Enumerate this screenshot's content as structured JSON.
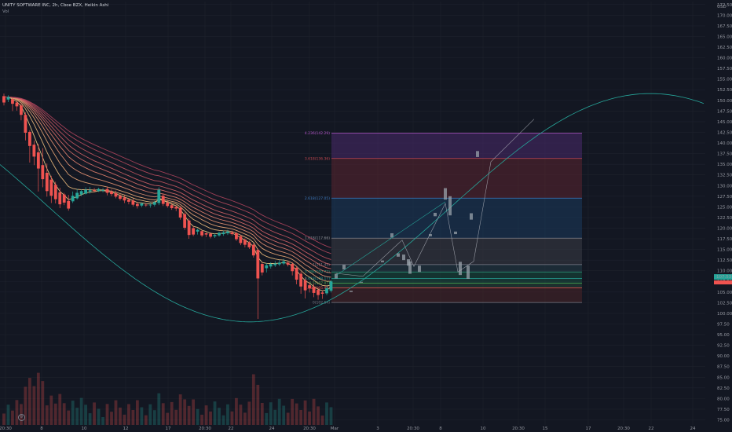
{
  "header": {
    "symbol_line": "UNITY SOFTWARE INC, 2h, Cboe BZX, Heikin Ashi",
    "volume_label": "Vol"
  },
  "price_axis": {
    "currency": "USD",
    "current_price": "107.53"
  },
  "colors": {
    "background": "#131722",
    "up": "#26a69a",
    "down": "#ef5350",
    "curve": "#26a69a"
  },
  "chart_data": {
    "type": "candlestick",
    "title": "UNITY SOFTWARE INC, 2h, Cboe BZX, Heikin Ashi",
    "y_ticks": [
      "172.50",
      "170.00",
      "167.50",
      "165.00",
      "162.50",
      "160.00",
      "157.50",
      "155.00",
      "152.50",
      "150.00",
      "147.50",
      "145.00",
      "142.50",
      "140.00",
      "137.50",
      "135.00",
      "132.50",
      "130.00",
      "127.50",
      "125.00",
      "122.50",
      "120.00",
      "117.50",
      "115.00",
      "112.50",
      "110.00",
      "107.50",
      "105.00",
      "102.50",
      "100.00",
      "97.50",
      "95.00",
      "92.50",
      "90.00",
      "87.50",
      "85.00",
      "82.50",
      "80.00",
      "77.50",
      "75.00"
    ],
    "ylim": [
      73.8,
      173.2
    ],
    "x_ticks": [
      "20:30",
      "8",
      "10",
      "12",
      "17",
      "20:30",
      "22",
      "24",
      "20:30",
      "Mar",
      "3",
      "20:30",
      "8",
      "10",
      "20:30",
      "15",
      "17",
      "20:30",
      "22",
      "24"
    ],
    "fib_levels": [
      {
        "label": "4.236(142.29)",
        "value": 142.29
      },
      {
        "label": "3.618(136.36)",
        "value": 136.36
      },
      {
        "label": "2.618(127.05)",
        "value": 127.05
      },
      {
        "label": "1.618(117.66)",
        "value": 117.66
      },
      {
        "label": "1(111.45)",
        "value": 111.45
      },
      {
        "label": "0.786(109.72)",
        "value": 109.72
      },
      {
        "label": "0.618(108.17)",
        "value": 108.17
      },
      {
        "label": "0.5(107.07)",
        "value": 107.07
      },
      {
        "label": "0.382(105.98)",
        "value": 105.98
      },
      {
        "label": "0(102.54)",
        "value": 102.54
      }
    ],
    "candles": [
      {
        "o": 151.0,
        "c": 149.5,
        "h": 151.6,
        "l": 148.8
      },
      {
        "o": 150.2,
        "c": 150.8,
        "h": 151.2,
        "l": 149.6
      },
      {
        "o": 150.3,
        "c": 149.2,
        "h": 150.6,
        "l": 147.5
      },
      {
        "o": 149.5,
        "c": 148.6,
        "h": 150.1,
        "l": 147.6
      },
      {
        "o": 148.8,
        "c": 146.6,
        "h": 149.4,
        "l": 145.3
      },
      {
        "o": 146.6,
        "c": 142.4,
        "h": 147.2,
        "l": 140.6
      },
      {
        "o": 142.6,
        "c": 139.3,
        "h": 143.0,
        "l": 135.4
      },
      {
        "o": 139.6,
        "c": 136.8,
        "h": 140.6,
        "l": 134.8
      },
      {
        "o": 137.8,
        "c": 134.0,
        "h": 139.8,
        "l": 128.6
      },
      {
        "o": 134.8,
        "c": 131.5,
        "h": 138.8,
        "l": 129.6
      },
      {
        "o": 133.0,
        "c": 128.7,
        "h": 135.2,
        "l": 127.4
      },
      {
        "o": 131.4,
        "c": 127.6,
        "h": 132.3,
        "l": 125.9
      },
      {
        "o": 130.2,
        "c": 126.8,
        "h": 130.9,
        "l": 125.8
      },
      {
        "o": 128.4,
        "c": 125.6,
        "h": 129.5,
        "l": 124.7
      },
      {
        "o": 127.9,
        "c": 126.0,
        "h": 128.3,
        "l": 125.4
      },
      {
        "o": 126.4,
        "c": 124.6,
        "h": 127.8,
        "l": 124.1
      },
      {
        "o": 126.3,
        "c": 127.6,
        "h": 128.6,
        "l": 125.9
      },
      {
        "o": 127.0,
        "c": 128.3,
        "h": 129.2,
        "l": 126.7
      },
      {
        "o": 127.9,
        "c": 128.7,
        "h": 129.1,
        "l": 127.5
      },
      {
        "o": 128.1,
        "c": 129.0,
        "h": 129.6,
        "l": 127.9
      },
      {
        "o": 128.6,
        "c": 128.9,
        "h": 129.7,
        "l": 128.1
      },
      {
        "o": 128.9,
        "c": 128.7,
        "h": 129.4,
        "l": 128.4
      },
      {
        "o": 128.7,
        "c": 129.2,
        "h": 129.5,
        "l": 128.5
      },
      {
        "o": 128.9,
        "c": 128.9,
        "h": 129.4,
        "l": 128.4
      },
      {
        "o": 129.2,
        "c": 128.3,
        "h": 129.8,
        "l": 127.7
      },
      {
        "o": 128.6,
        "c": 128.0,
        "h": 129.1,
        "l": 127.5
      },
      {
        "o": 128.2,
        "c": 127.4,
        "h": 128.8,
        "l": 127.0
      },
      {
        "o": 127.6,
        "c": 126.9,
        "h": 128.0,
        "l": 126.5
      },
      {
        "o": 127.2,
        "c": 126.5,
        "h": 127.7,
        "l": 125.9
      },
      {
        "o": 126.7,
        "c": 126.2,
        "h": 127.1,
        "l": 125.6
      },
      {
        "o": 126.5,
        "c": 125.5,
        "h": 127.0,
        "l": 125.1
      },
      {
        "o": 125.7,
        "c": 125.2,
        "h": 126.2,
        "l": 124.6
      },
      {
        "o": 125.3,
        "c": 125.8,
        "h": 126.0,
        "l": 124.9
      },
      {
        "o": 125.5,
        "c": 125.4,
        "h": 125.9,
        "l": 125.0
      },
      {
        "o": 125.4,
        "c": 125.5,
        "h": 125.9,
        "l": 124.8
      },
      {
        "o": 125.5,
        "c": 126.1,
        "h": 126.4,
        "l": 125.1
      },
      {
        "o": 125.9,
        "c": 129.0,
        "h": 129.6,
        "l": 125.4
      },
      {
        "o": 127.6,
        "c": 125.7,
        "h": 128.1,
        "l": 125.2
      },
      {
        "o": 126.0,
        "c": 125.2,
        "h": 126.5,
        "l": 124.8
      },
      {
        "o": 125.4,
        "c": 124.7,
        "h": 125.8,
        "l": 124.3
      },
      {
        "o": 125.0,
        "c": 124.6,
        "h": 125.3,
        "l": 124.0
      },
      {
        "o": 124.8,
        "c": 122.5,
        "h": 125.2,
        "l": 122.0
      },
      {
        "o": 123.3,
        "c": 120.1,
        "h": 123.7,
        "l": 119.6
      },
      {
        "o": 121.8,
        "c": 118.4,
        "h": 122.3,
        "l": 117.5
      },
      {
        "o": 120.0,
        "c": 118.5,
        "h": 120.5,
        "l": 118.1
      },
      {
        "o": 119.2,
        "c": 119.6,
        "h": 119.9,
        "l": 118.5
      },
      {
        "o": 119.3,
        "c": 118.3,
        "h": 119.6,
        "l": 117.9
      },
      {
        "o": 118.8,
        "c": 118.5,
        "h": 119.0,
        "l": 117.9
      },
      {
        "o": 118.7,
        "c": 118.0,
        "h": 119.0,
        "l": 117.6
      },
      {
        "o": 118.1,
        "c": 118.4,
        "h": 118.7,
        "l": 117.7
      },
      {
        "o": 118.3,
        "c": 118.9,
        "h": 119.2,
        "l": 118.0
      },
      {
        "o": 118.6,
        "c": 119.0,
        "h": 119.4,
        "l": 118.2
      },
      {
        "o": 118.8,
        "c": 119.2,
        "h": 119.6,
        "l": 118.4
      },
      {
        "o": 119.0,
        "c": 118.6,
        "h": 119.4,
        "l": 118.3
      },
      {
        "o": 118.8,
        "c": 117.4,
        "h": 119.1,
        "l": 117.0
      },
      {
        "o": 118.1,
        "c": 116.5,
        "h": 118.4,
        "l": 116.0
      },
      {
        "o": 117.3,
        "c": 116.1,
        "h": 117.6,
        "l": 115.5
      },
      {
        "o": 116.7,
        "c": 115.5,
        "h": 117.0,
        "l": 115.1
      },
      {
        "o": 116.1,
        "c": 113.6,
        "h": 116.4,
        "l": 113.1
      },
      {
        "o": 114.9,
        "c": 108.2,
        "h": 115.2,
        "l": 98.7
      },
      {
        "o": 111.6,
        "c": 109.6,
        "h": 112.1,
        "l": 108.9
      },
      {
        "o": 110.6,
        "c": 111.3,
        "h": 111.8,
        "l": 109.6
      },
      {
        "o": 111.0,
        "c": 111.6,
        "h": 112.0,
        "l": 110.5
      },
      {
        "o": 111.3,
        "c": 111.7,
        "h": 112.3,
        "l": 110.9
      },
      {
        "o": 111.5,
        "c": 111.9,
        "h": 112.5,
        "l": 111.1
      },
      {
        "o": 111.7,
        "c": 112.2,
        "h": 112.8,
        "l": 111.3
      },
      {
        "o": 111.9,
        "c": 111.4,
        "h": 112.3,
        "l": 111.0
      },
      {
        "o": 111.6,
        "c": 109.9,
        "h": 112.0,
        "l": 108.9
      },
      {
        "o": 110.7,
        "c": 107.9,
        "h": 111.1,
        "l": 106.8
      },
      {
        "o": 109.3,
        "c": 106.3,
        "h": 109.8,
        "l": 104.6
      },
      {
        "o": 107.8,
        "c": 105.4,
        "h": 108.4,
        "l": 103.5
      },
      {
        "o": 106.6,
        "c": 105.9,
        "h": 107.3,
        "l": 104.9
      },
      {
        "o": 106.2,
        "c": 104.8,
        "h": 106.9,
        "l": 103.8
      },
      {
        "o": 105.5,
        "c": 104.3,
        "h": 106.0,
        "l": 103.2
      },
      {
        "o": 104.9,
        "c": 104.6,
        "h": 105.4,
        "l": 103.4
      },
      {
        "o": 104.7,
        "c": 105.9,
        "h": 106.4,
        "l": 104.3
      },
      {
        "o": 105.3,
        "c": 107.5,
        "h": 107.8,
        "l": 104.9
      }
    ],
    "projection": [
      {
        "o": 108.2,
        "c": 109.3
      },
      {
        "o": 110.3,
        "c": 111.4
      },
      {
        "o": 105.3,
        "c": 105.0
      },
      {
        "o": 107.4,
        "c": 107.2
      },
      {
        "o": 112.4,
        "c": 112.0
      },
      {
        "o": 117.8,
        "c": 118.8
      },
      {
        "o": 114.1,
        "c": 113.3
      },
      {
        "o": 113.8,
        "c": 112.5
      },
      {
        "o": 112.7,
        "c": 111.2
      },
      {
        "o": 112.2,
        "c": 109.3
      },
      {
        "o": 111.2,
        "c": 109.7
      },
      {
        "o": 118.6,
        "c": 118.1
      },
      {
        "o": 122.8,
        "c": 123.6
      },
      {
        "o": 126.7,
        "c": 129.4
      },
      {
        "o": 123.0,
        "c": 127.5
      },
      {
        "o": 119.2,
        "c": 118.6
      },
      {
        "o": 112.1,
        "c": 109.0
      },
      {
        "o": 111.2,
        "c": 108.1
      },
      {
        "o": 123.5,
        "c": 122.0
      },
      {
        "o": 138.1,
        "c": 136.7
      }
    ]
  }
}
